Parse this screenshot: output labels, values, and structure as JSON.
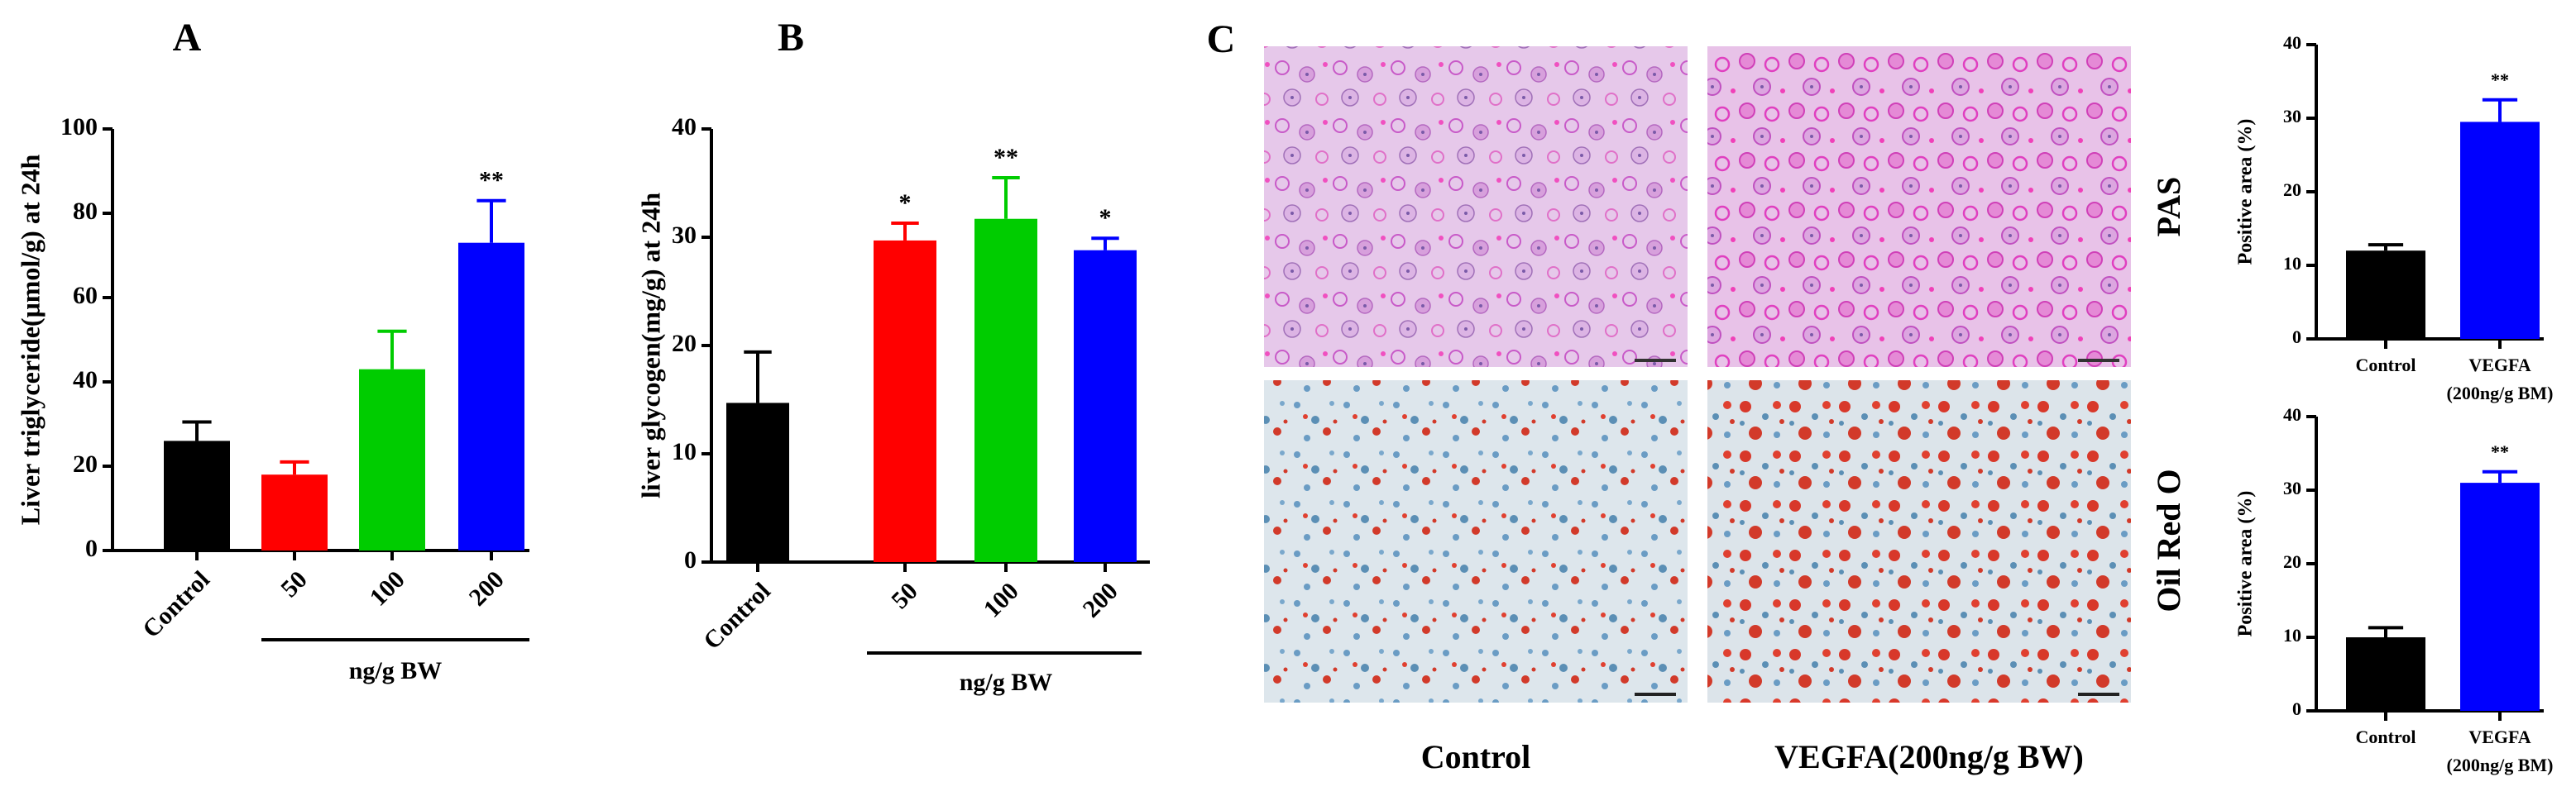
{
  "chart_data": [
    {
      "type": "bar",
      "panel_label": "A",
      "ylabel": "Liver triglyceride(μmol/g) at 24h",
      "categories": [
        "Control",
        "50",
        "100",
        "200"
      ],
      "values": [
        26,
        18,
        43,
        73
      ],
      "errors": [
        4.5,
        3,
        9,
        10
      ],
      "annotations": [
        null,
        null,
        null,
        "**"
      ],
      "colors": [
        "#000000",
        "#ff0000",
        "#00cc00",
        "#0000ff"
      ],
      "group_label": "ng/g BW",
      "ylim": [
        0,
        100
      ],
      "yticks": [
        0,
        20,
        40,
        60,
        80,
        100
      ]
    },
    {
      "type": "bar",
      "panel_label": "B",
      "ylabel": "liver glycogen(mg/g) at 24h",
      "categories": [
        "Control",
        "50",
        "100",
        "200"
      ],
      "values": [
        14.7,
        29.7,
        31.7,
        28.8
      ],
      "errors": [
        4.7,
        1.6,
        3.8,
        1.1
      ],
      "annotations": [
        null,
        "*",
        "**",
        "*"
      ],
      "colors": [
        "#000000",
        "#ff0000",
        "#00cc00",
        "#0000ff"
      ],
      "group_label": "ng/g BW",
      "ylim": [
        0,
        40
      ],
      "yticks": [
        0,
        10,
        20,
        30,
        40
      ]
    },
    {
      "type": "bar",
      "ylabel": "Positive area (%)",
      "categories": [
        [
          "Control"
        ],
        [
          "VEGFA",
          "(200ng/g BM)"
        ]
      ],
      "values": [
        12,
        29.5
      ],
      "errors": [
        0.8,
        3
      ],
      "annotations": [
        null,
        "**"
      ],
      "colors": [
        "#000000",
        "#0000ff"
      ],
      "ylim": [
        0,
        40
      ],
      "yticks": [
        0,
        10,
        20,
        30,
        40
      ]
    },
    {
      "type": "bar",
      "ylabel": "Positive area (%)",
      "categories": [
        [
          "Control"
        ],
        [
          "VEGFA",
          "(200ng/g BM)"
        ]
      ],
      "values": [
        10,
        31
      ],
      "errors": [
        1.3,
        1.5
      ],
      "annotations": [
        null,
        "**"
      ],
      "colors": [
        "#000000",
        "#0000ff"
      ],
      "ylim": [
        0,
        40
      ],
      "yticks": [
        0,
        10,
        20,
        30,
        40
      ]
    }
  ],
  "micrographs": {
    "panel_label": "C",
    "columns": [
      "Control",
      "VEGFA(200ng/g BW)"
    ],
    "rows": [
      "PAS",
      "Oil Red O"
    ]
  }
}
